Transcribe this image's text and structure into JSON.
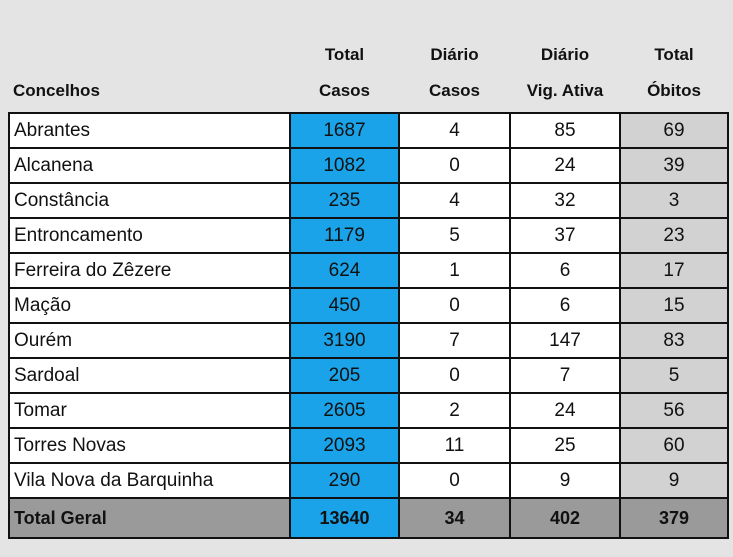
{
  "table": {
    "headers": {
      "name": "Concelhos",
      "total_casos": [
        "Total",
        "Casos"
      ],
      "diario_casos": [
        "Diário",
        "Casos"
      ],
      "diario_vig": [
        "Diário",
        "Vig. Ativa"
      ],
      "total_obitos": [
        "Total",
        "Óbitos"
      ]
    },
    "rows": [
      {
        "name": "Abrantes",
        "total_casos": "1687",
        "diario_casos": "4",
        "diario_vig": "85",
        "total_obitos": "69"
      },
      {
        "name": "Alcanena",
        "total_casos": "1082",
        "diario_casos": "0",
        "diario_vig": "24",
        "total_obitos": "39"
      },
      {
        "name": "Constância",
        "total_casos": "235",
        "diario_casos": "4",
        "diario_vig": "32",
        "total_obitos": "3"
      },
      {
        "name": "Entroncamento",
        "total_casos": "1179",
        "diario_casos": "5",
        "diario_vig": "37",
        "total_obitos": "23"
      },
      {
        "name": "Ferreira do Zêzere",
        "total_casos": "624",
        "diario_casos": "1",
        "diario_vig": "6",
        "total_obitos": "17"
      },
      {
        "name": "Mação",
        "total_casos": "450",
        "diario_casos": "0",
        "diario_vig": "6",
        "total_obitos": "15"
      },
      {
        "name": "Ourém",
        "total_casos": "3190",
        "diario_casos": "7",
        "diario_vig": "147",
        "total_obitos": "83"
      },
      {
        "name": "Sardoal",
        "total_casos": "205",
        "diario_casos": "0",
        "diario_vig": "7",
        "total_obitos": "5"
      },
      {
        "name": "Tomar",
        "total_casos": "2605",
        "diario_casos": "2",
        "diario_vig": "24",
        "total_obitos": "56"
      },
      {
        "name": "Torres Novas",
        "total_casos": "2093",
        "diario_casos": "11",
        "diario_vig": "25",
        "total_obitos": "60"
      },
      {
        "name": "Vila Nova da Barquinha",
        "total_casos": "290",
        "diario_casos": "0",
        "diario_vig": "9",
        "total_obitos": "9"
      }
    ],
    "footer": {
      "name": "Total Geral",
      "total_casos": "13640",
      "diario_casos": "34",
      "diario_vig": "402",
      "total_obitos": "379"
    }
  },
  "colors": {
    "background": "#e4e4e4",
    "total_casos_column": "#1aa3e8",
    "total_obitos_column": "#d2d2d2",
    "footer_row": "#9a9a9a",
    "cell": "#ffffff"
  }
}
